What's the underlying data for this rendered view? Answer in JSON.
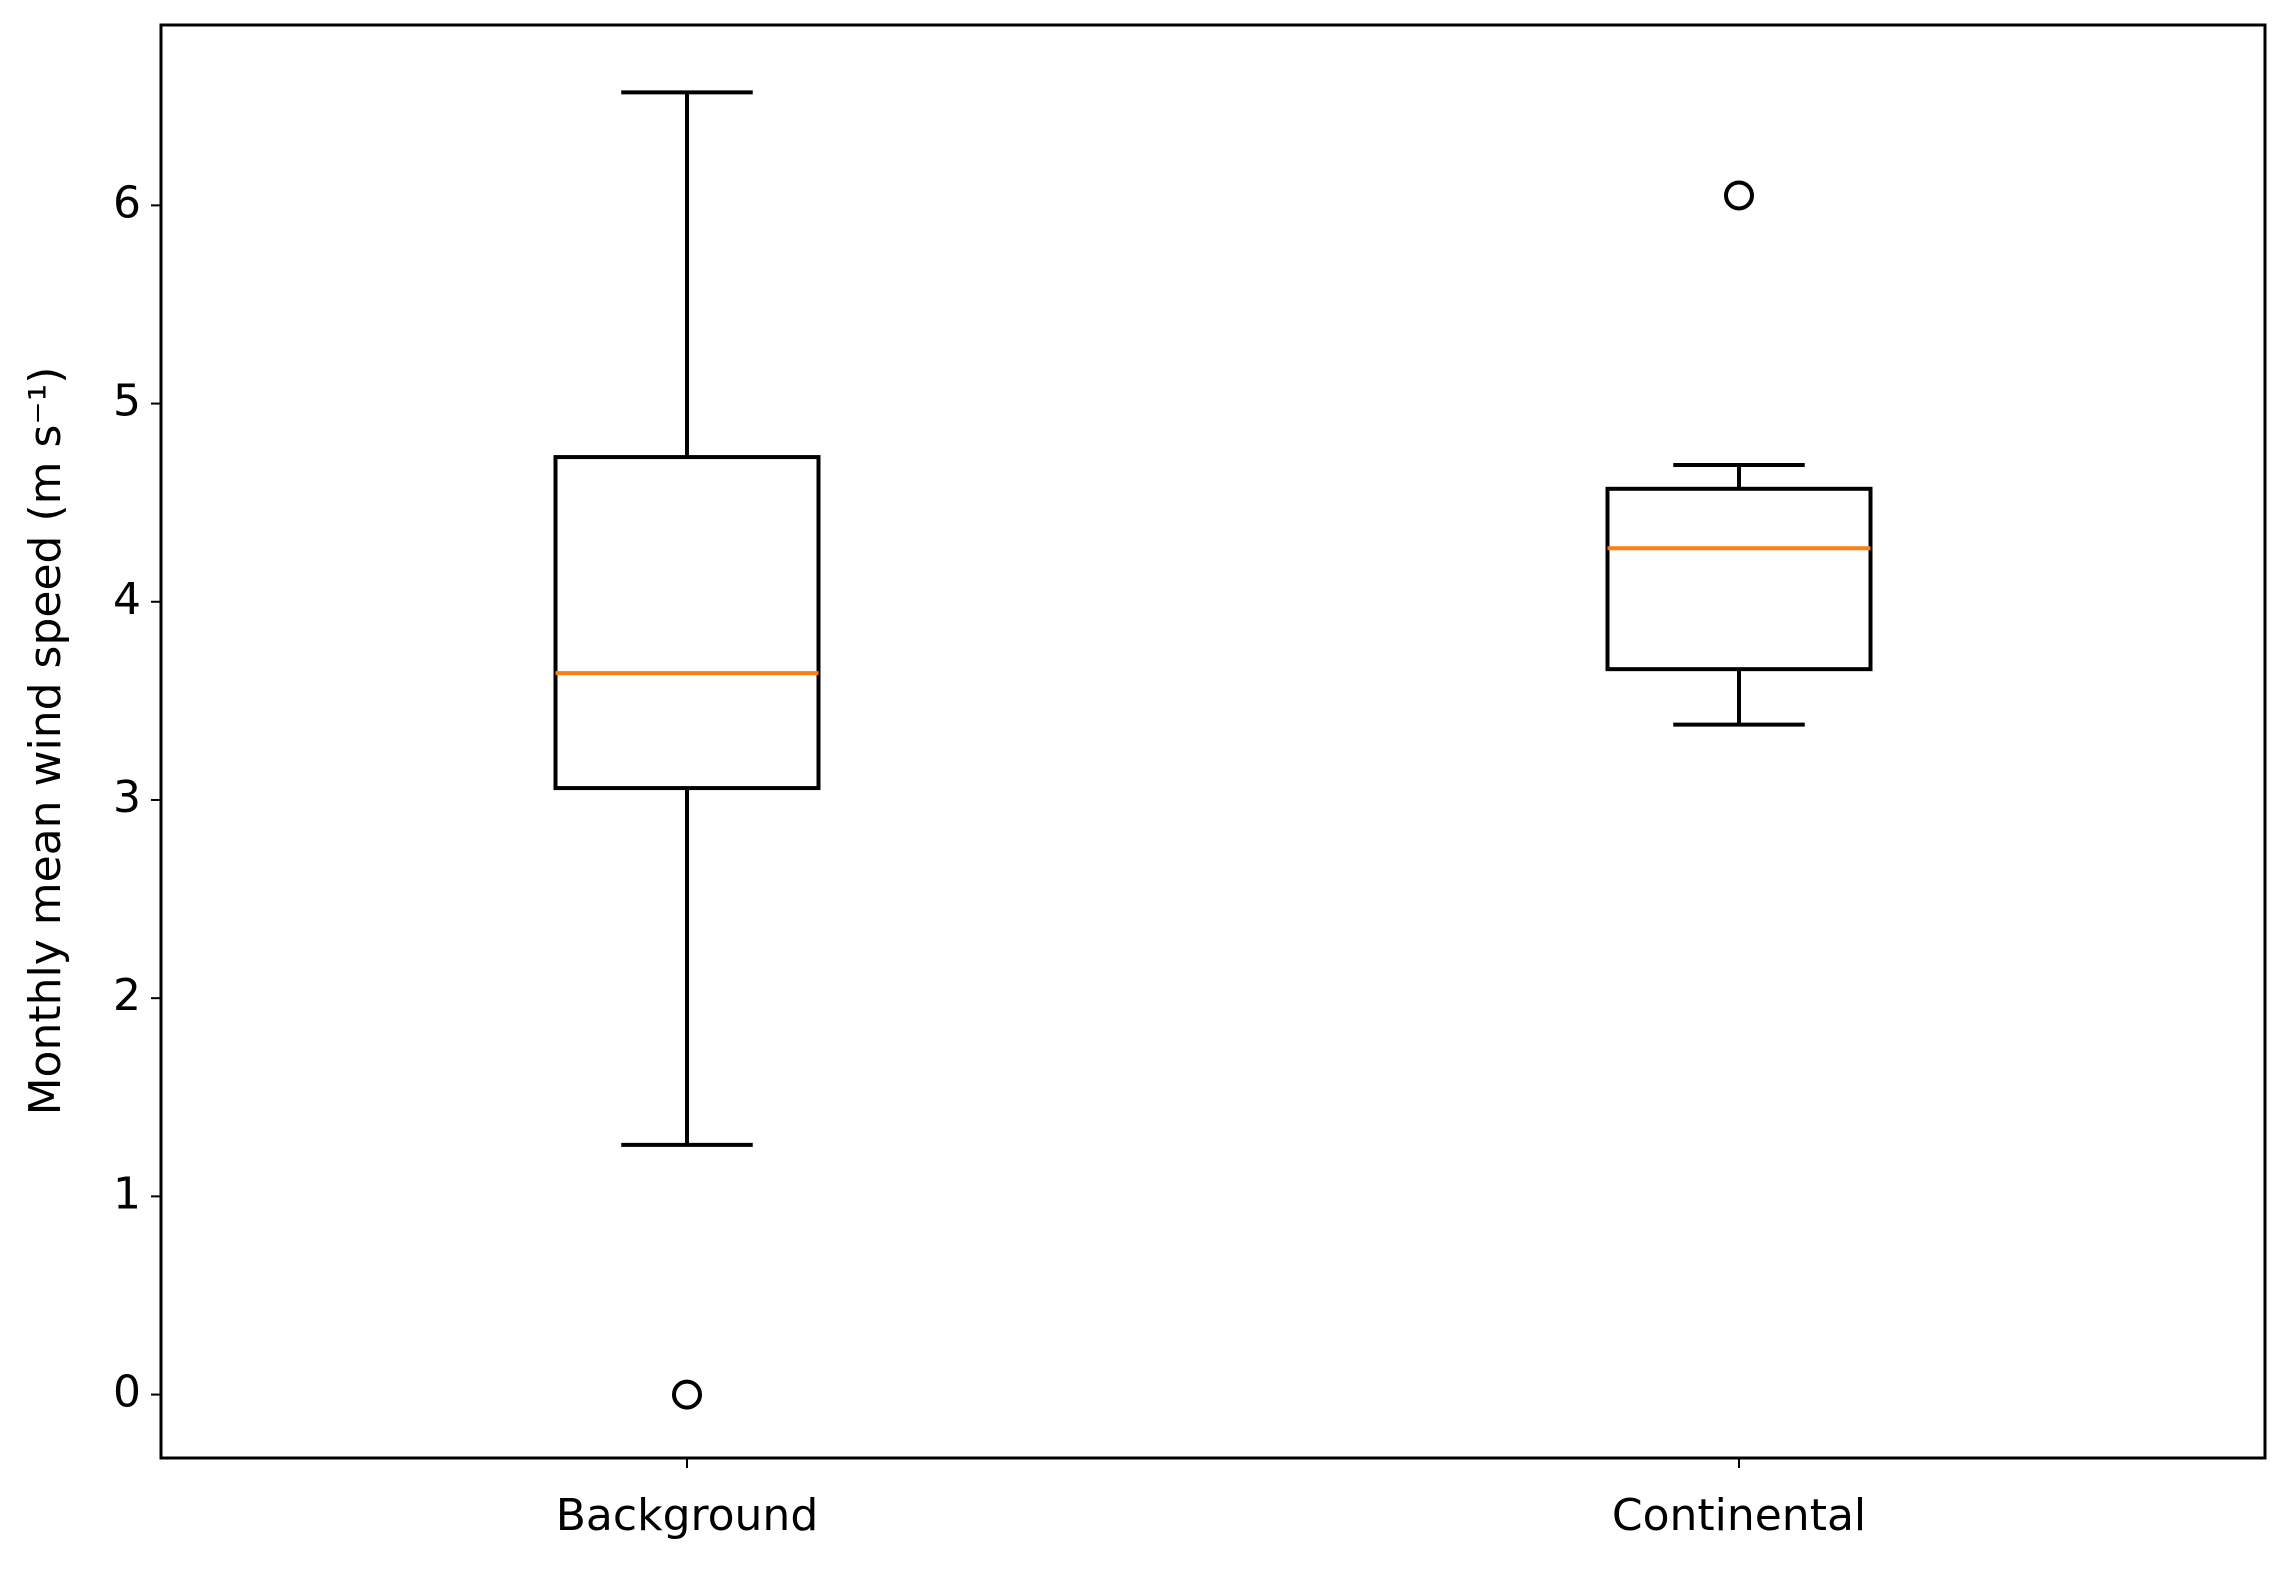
{
  "chart_data": {
    "type": "box",
    "y_label": "Monthly mean wind speed (m s⁻¹)",
    "categories": [
      "Background",
      "Continental"
    ],
    "boxes": [
      {
        "whislo": 1.26,
        "q1": 3.06,
        "med": 3.64,
        "q3": 4.73,
        "whishi": 6.57,
        "fliers": [
          0.0
        ]
      },
      {
        "whislo": 3.38,
        "q1": 3.66,
        "med": 4.27,
        "q3": 4.57,
        "whishi": 4.69,
        "fliers": [
          6.05
        ]
      }
    ],
    "box_color": "#000000",
    "median_color": "#ff7f0e",
    "ylim": [
      -0.32,
      6.91
    ],
    "yticks": [
      0,
      1,
      2,
      3,
      4,
      5,
      6
    ]
  }
}
